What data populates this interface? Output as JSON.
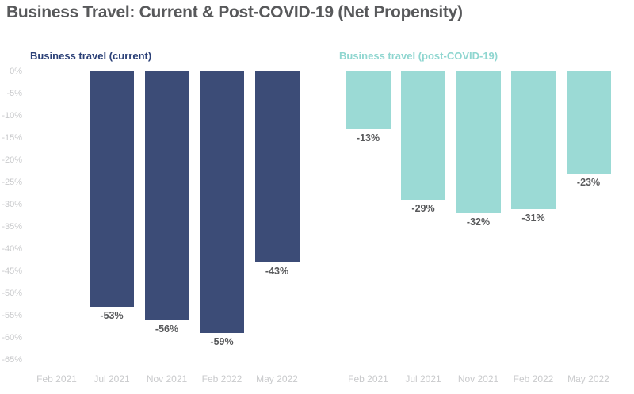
{
  "title": "Business Travel: Current & Post-COVID-19 (Net Propensity)",
  "colors": {
    "title_text": "#58595B",
    "axis_text": "#C9CACC",
    "data_label_text": "#58595B",
    "current_series": "#3C4C77",
    "post_series": "#9BDAD5",
    "current_legend_text": "#2B4077",
    "post_legend_text": "#8FD6D0"
  },
  "y_axis": {
    "ticks": [
      "0%",
      "-5%",
      "-10%",
      "-15%",
      "-20%",
      "-25%",
      "-30%",
      "-35%",
      "-40%",
      "-45%",
      "-50%",
      "-55%",
      "-60%",
      "-65%"
    ],
    "max": 0,
    "min": -65,
    "grid": false
  },
  "chart_data": [
    {
      "type": "bar",
      "title": "Business travel (current)",
      "color": "#3C4C77",
      "categories": [
        "Feb 2021",
        "Jul 2021",
        "Nov 2021",
        "Feb 2022",
        "May 2022"
      ],
      "values": [
        null,
        -53,
        -56,
        -59,
        -43
      ],
      "labels": [
        "",
        "-53%",
        "-56%",
        "-59%",
        "-43%"
      ],
      "xlabel": "",
      "ylabel": "",
      "ylim": [
        -65,
        0
      ],
      "legend_position": "top-left"
    },
    {
      "type": "bar",
      "title": "Business travel (post-COVID-19)",
      "color": "#9BDAD5",
      "categories": [
        "Feb 2021",
        "Jul 2021",
        "Nov 2021",
        "Feb 2022",
        "May 2022"
      ],
      "values": [
        -13,
        -29,
        -32,
        -31,
        -23
      ],
      "labels": [
        "-13%",
        "-29%",
        "-32%",
        "-31%",
        "-23%"
      ],
      "xlabel": "",
      "ylabel": "",
      "ylim": [
        -65,
        0
      ],
      "legend_position": "top-left"
    }
  ]
}
